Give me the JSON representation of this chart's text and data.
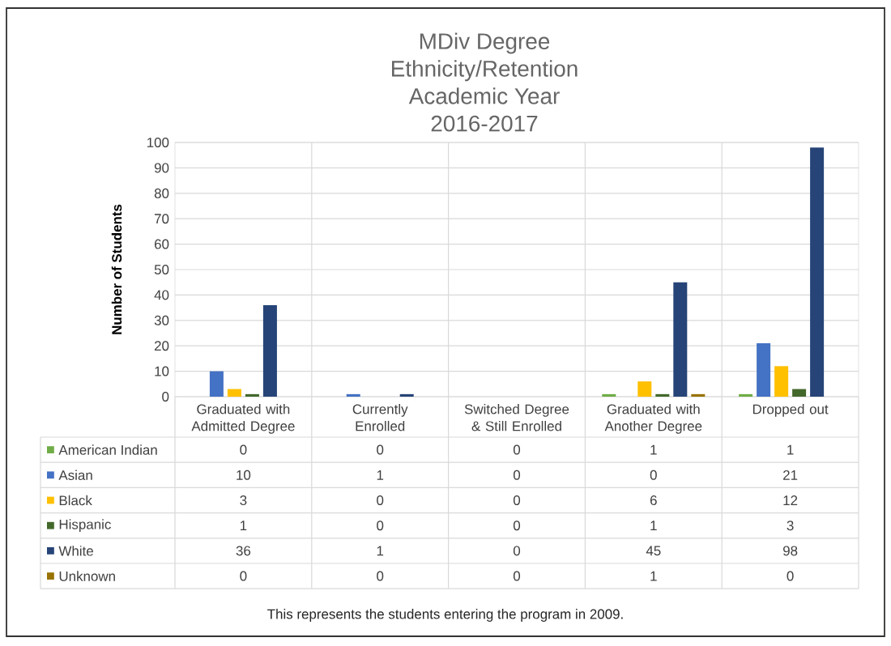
{
  "chart_data": {
    "type": "bar",
    "title": "MDiv Degree Ethnicity/Retention Academic Year 2016-2017",
    "ylabel": "Number of Students",
    "categories": [
      "Graduated with Admitted Degree",
      "Currently Enrolled",
      "Switched Degree & Still Enrolled",
      "Graduated with Another Degree",
      "Dropped out"
    ],
    "series": [
      {
        "name": "American Indian",
        "color": "#70ad47",
        "values": [
          0,
          0,
          0,
          1,
          1
        ]
      },
      {
        "name": "Asian",
        "color": "#4472c4",
        "values": [
          10,
          1,
          0,
          0,
          21
        ]
      },
      {
        "name": "Black",
        "color": "#ffc000",
        "values": [
          3,
          0,
          0,
          6,
          12
        ]
      },
      {
        "name": "Hispanic",
        "color": "#43682b",
        "values": [
          1,
          0,
          0,
          1,
          3
        ]
      },
      {
        "name": "White",
        "color": "#264478",
        "values": [
          36,
          1,
          0,
          45,
          98
        ]
      },
      {
        "name": "Unknown",
        "color": "#997300",
        "values": [
          0,
          0,
          0,
          1,
          0
        ]
      }
    ],
    "ylim": [
      0,
      100
    ],
    "yticks": [
      0,
      10,
      20,
      30,
      40,
      50,
      60,
      70,
      80,
      90,
      100
    ],
    "grid": true,
    "legend": "bottom",
    "data_labels": true,
    "annotations": [
      "This represents the students entering the program in 2009."
    ]
  }
}
